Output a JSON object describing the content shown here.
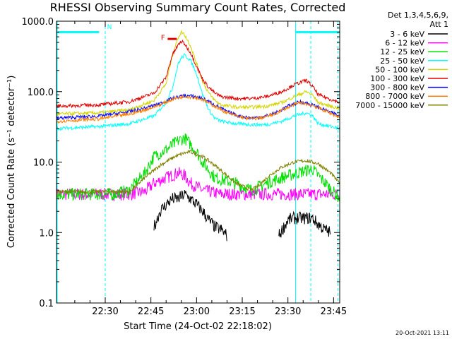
{
  "chart_data": {
    "type": "line",
    "title": "RHESSI Observing Summary Count Rates, Corrected",
    "xlabel": "Start Time (24-Oct-02 22:18:02)",
    "ylabel": "Corrected Count Rate (s⁻¹ detector⁻¹)",
    "y_scale": "log",
    "ylim": [
      0.1,
      1000
    ],
    "xlim_minutes": [
      -4.0,
      89.0
    ],
    "x_ticks": [
      {
        "m": 12,
        "label": "22:30"
      },
      {
        "m": 27,
        "label": "22:45"
      },
      {
        "m": 42,
        "label": "23:00"
      },
      {
        "m": 57,
        "label": "23:15"
      },
      {
        "m": 72,
        "label": "23:30"
      },
      {
        "m": 87,
        "label": "23:45"
      }
    ],
    "y_ticks": [
      {
        "v": 0.1,
        "label": "0.1"
      },
      {
        "v": 1,
        "label": "1.0"
      },
      {
        "v": 10,
        "label": "10.0"
      },
      {
        "v": 100,
        "label": "100.0"
      },
      {
        "v": 1000,
        "label": "1000.0"
      }
    ],
    "legend": {
      "header": "Det 1,3,4,5,6,9,",
      "subheader": "Att 1",
      "placement": "right",
      "entries": [
        {
          "name": "3 - 6 keV",
          "color": "#000000"
        },
        {
          "name": "6 - 12 keV",
          "color": "#ff00ff"
        },
        {
          "name": "12 - 25 keV",
          "color": "#00e000"
        },
        {
          "name": "25 - 50 keV",
          "color": "#00ffff"
        },
        {
          "name": "50 - 100 keV",
          "color": "#d4d400"
        },
        {
          "name": "100 - 300 keV",
          "color": "#e00000"
        },
        {
          "name": "300 - 800 keV",
          "color": "#0000ff"
        },
        {
          "name": "800 - 7000 keV",
          "color": "#ff8000"
        },
        {
          "name": "7000 - 15000 keV",
          "color": "#808000"
        }
      ]
    },
    "series": [
      {
        "color": "#ff00ff",
        "x": [
          -4,
          20,
          25,
          28,
          32,
          36,
          38,
          40,
          44,
          50,
          60,
          70,
          89
        ],
        "y": [
          3.5,
          3.5,
          3.8,
          5,
          6,
          7,
          6.5,
          5,
          4,
          3.5,
          3.5,
          3.5,
          3.5
        ]
      },
      {
        "color": "#00e000",
        "x": [
          -4,
          15,
          20,
          25,
          28,
          32,
          36,
          38,
          40,
          42,
          44,
          48,
          55,
          60,
          65,
          70,
          75,
          80,
          89
        ],
        "y": [
          3.5,
          3.5,
          4,
          7,
          12,
          15,
          20,
          22,
          18,
          14,
          10,
          6,
          5,
          4,
          5,
          6,
          7,
          8,
          3
        ]
      },
      {
        "color": "#808000",
        "x": [
          -4,
          20,
          25,
          30,
          35,
          38,
          40,
          42,
          44,
          48,
          55,
          60,
          62,
          66,
          70,
          74,
          78,
          82,
          86,
          89
        ],
        "y": [
          3.8,
          3.8,
          6,
          9,
          12,
          13.5,
          14,
          13,
          12,
          9,
          5,
          4,
          4.5,
          6.5,
          8.5,
          10,
          10.5,
          9.5,
          7,
          5
        ]
      },
      {
        "color": "#000000",
        "x": [
          28,
          30,
          32,
          34,
          36,
          38,
          40,
          42,
          44,
          46,
          48,
          50,
          52
        ],
        "y": [
          1.2,
          2,
          2.5,
          3,
          3,
          3.5,
          3,
          2.5,
          2,
          1.5,
          1.2,
          1.1,
          0.9
        ]
      },
      {
        "color": "#000000",
        "x": [
          69,
          72,
          74,
          76,
          78,
          80,
          82,
          84,
          86
        ],
        "y": [
          0.9,
          1.5,
          1.6,
          1.6,
          1.6,
          1.6,
          1.3,
          1.1,
          1.0
        ]
      },
      {
        "color": "#00ffff",
        "x": [
          -4,
          10,
          20,
          28,
          32,
          34,
          36,
          37,
          38,
          40,
          42,
          44,
          46,
          48,
          50,
          55,
          60,
          65,
          70,
          74,
          78,
          80,
          82,
          86,
          89
        ],
        "y": [
          30,
          32,
          35,
          45,
          70,
          110,
          250,
          300,
          330,
          280,
          180,
          90,
          55,
          42,
          38,
          35,
          34,
          34,
          38,
          45,
          50,
          46,
          35,
          32,
          30
        ]
      },
      {
        "color": "#d4d400",
        "x": [
          -4,
          10,
          20,
          28,
          32,
          34,
          36,
          37,
          38,
          40,
          42,
          44,
          46,
          48,
          50,
          55,
          60,
          65,
          70,
          74,
          78,
          80,
          82,
          86,
          89
        ],
        "y": [
          48,
          50,
          55,
          75,
          130,
          320,
          600,
          700,
          650,
          450,
          250,
          140,
          95,
          75,
          65,
          60,
          60,
          62,
          70,
          85,
          100,
          90,
          70,
          62,
          58
        ]
      },
      {
        "color": "#e00000",
        "x": [
          -4,
          10,
          20,
          28,
          32,
          34,
          36,
          37,
          38,
          40,
          42,
          44,
          46,
          48,
          50,
          55,
          60,
          65,
          70,
          74,
          78,
          80,
          82,
          86,
          89
        ],
        "y": [
          62,
          65,
          72,
          95,
          160,
          330,
          460,
          520,
          480,
          360,
          230,
          150,
          115,
          95,
          85,
          80,
          80,
          85,
          100,
          125,
          145,
          120,
          90,
          78,
          70
        ]
      },
      {
        "color": "#0000ff",
        "x": [
          -4,
          10,
          20,
          25,
          30,
          34,
          38,
          42,
          44,
          48,
          52,
          56,
          60,
          64,
          68,
          72,
          76,
          80,
          84,
          89
        ],
        "y": [
          42,
          45,
          52,
          58,
          68,
          80,
          88,
          85,
          80,
          65,
          52,
          45,
          42,
          44,
          50,
          62,
          72,
          65,
          55,
          45
        ]
      },
      {
        "color": "#ff8000",
        "x": [
          -4,
          10,
          20,
          25,
          30,
          34,
          38,
          42,
          44,
          48,
          52,
          56,
          60,
          64,
          68,
          72,
          76,
          80,
          84,
          89
        ],
        "y": [
          38,
          41,
          48,
          55,
          65,
          78,
          86,
          82,
          77,
          62,
          50,
          44,
          41,
          43,
          49,
          60,
          70,
          64,
          54,
          43
        ]
      }
    ],
    "annotations": {
      "bar_label": "N",
      "flare_label": "F",
      "cyan_dashed_lines_minutes": [
        12.0,
        79.5,
        88.4
      ],
      "cyan_solid_line_minutes": 74.5,
      "flag_segments": [
        {
          "color": "#00ffff",
          "x": [
            -4,
            10
          ],
          "level": 700
        },
        {
          "color": "#00ffff",
          "x": [
            74.5,
            89
          ],
          "level": 700
        },
        {
          "color": "#e00000",
          "x": [
            32.5,
            35.5
          ],
          "level": 560
        }
      ]
    },
    "grid": false,
    "footer_timestamp": "20-Oct-2021 13:11"
  }
}
